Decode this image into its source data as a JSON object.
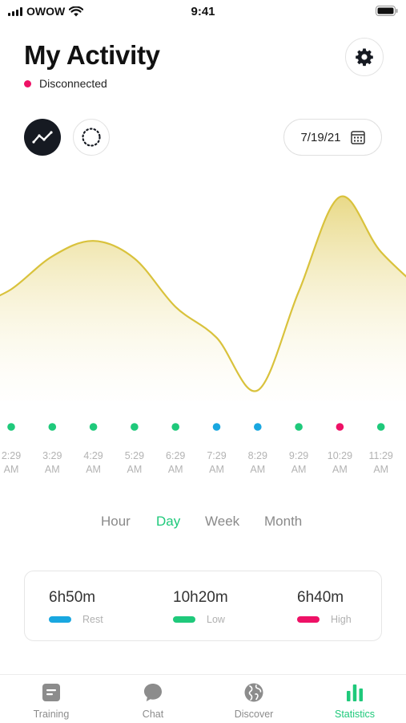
{
  "status_bar": {
    "carrier": "OWOW",
    "time": "9:41"
  },
  "header": {
    "title": "My Activity",
    "connection_status": "Disconnected",
    "connection_color": "#ee1166"
  },
  "date_picker": {
    "value": "7/19/21"
  },
  "chart_data": {
    "type": "area",
    "x": [
      "2:29 AM",
      "3:29 AM",
      "4:29 AM",
      "5:29 AM",
      "6:29 AM",
      "7:29 AM",
      "8:29 AM",
      "9:29 AM",
      "10:29 AM",
      "11:29 AM"
    ],
    "series": [
      {
        "values": [
          48,
          63,
          70,
          62,
          40,
          26,
          2,
          47,
          90,
          65
        ]
      }
    ],
    "level_colors": [
      "#1fc97b",
      "#1fc97b",
      "#1fc97b",
      "#1fc97b",
      "#1fc97b",
      "#19a7e0",
      "#19a7e0",
      "#1fc97b",
      "#ee1166",
      "#1fc97b"
    ],
    "line_color": "#d9c23c",
    "ylim": [
      0,
      100
    ],
    "grid": false
  },
  "periods": {
    "hour": "Hour",
    "day": "Day",
    "week": "Week",
    "month": "Month",
    "active": "Day"
  },
  "summary": [
    {
      "value": "6h50m",
      "label": "Rest",
      "color": "#19a7e0"
    },
    {
      "value": "10h20m",
      "label": "Low",
      "color": "#1fc97b"
    },
    {
      "value": "6h40m",
      "label": "High",
      "color": "#ee1166"
    }
  ],
  "tabs": [
    {
      "label": "Training",
      "icon": "training-icon"
    },
    {
      "label": "Chat",
      "icon": "chat-bubble-icon"
    },
    {
      "label": "Discover",
      "icon": "globe-icon"
    },
    {
      "label": "Statistics",
      "icon": "bar-chart-icon",
      "active": true
    }
  ]
}
